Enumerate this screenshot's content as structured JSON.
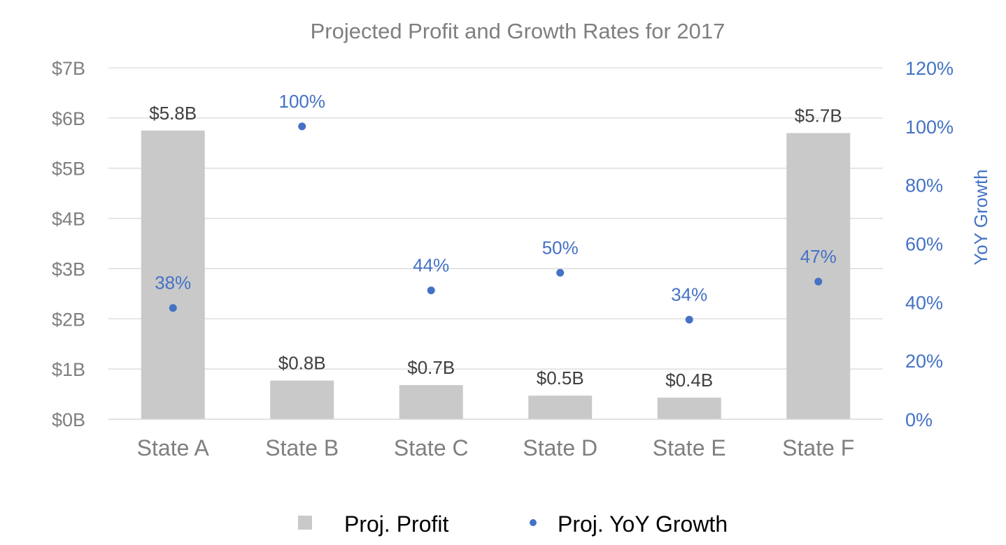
{
  "chart_data": {
    "type": "bar",
    "title": "Projected Profit and Growth Rates for 2017",
    "categories": [
      "State A",
      "State B",
      "State C",
      "State D",
      "State E",
      "State F"
    ],
    "series": [
      {
        "name": "Proj. Profit",
        "type": "bar",
        "axis": "left",
        "values": [
          5.75,
          0.77,
          0.68,
          0.47,
          0.43,
          5.7
        ],
        "data_labels": [
          "$5.8B",
          "$0.8B",
          "$0.7B",
          "$0.5B",
          "$0.4B",
          "$5.7B"
        ],
        "color": "#c9c9c9"
      },
      {
        "name": "Proj. YoY Growth",
        "type": "scatter",
        "axis": "right",
        "values": [
          38,
          100,
          44,
          50,
          34,
          47
        ],
        "data_labels": [
          "38%",
          "100%",
          "44%",
          "50%",
          "34%",
          "47%"
        ],
        "color": "#4472c4"
      }
    ],
    "y_left": {
      "label": "",
      "ylim": [
        0,
        7
      ],
      "ticks": [
        0,
        1,
        2,
        3,
        4,
        5,
        6,
        7
      ],
      "tick_labels": [
        "$0B",
        "$1B",
        "$2B",
        "$3B",
        "$4B",
        "$5B",
        "$6B",
        "$7B"
      ]
    },
    "y_right": {
      "label": "YoY Growth",
      "ylim": [
        0,
        120
      ],
      "ticks": [
        0,
        20,
        40,
        60,
        80,
        100,
        120
      ],
      "tick_labels": [
        "0%",
        "20%",
        "40%",
        "60%",
        "80%",
        "100%",
        "120%"
      ]
    },
    "xlabel": "",
    "grid": true,
    "legend": "bottom-center"
  },
  "colors": {
    "bar": "#c9c9c9",
    "point": "#4472c4",
    "text_gray": "#7f7f7f",
    "grid": "#d9d9d9"
  }
}
